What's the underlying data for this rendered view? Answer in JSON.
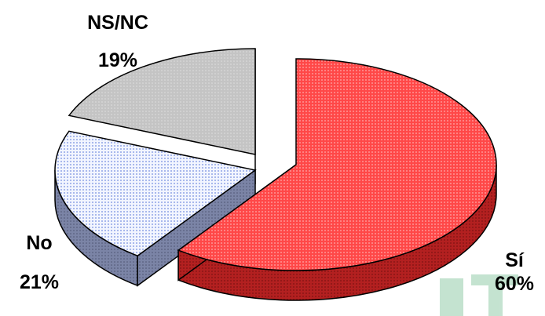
{
  "chart_data": {
    "type": "pie",
    "style": "3d-exploded",
    "categories": [
      "Sí",
      "No",
      "NS/NC"
    ],
    "values": [
      60,
      21,
      19
    ],
    "labels": [
      {
        "category": "Sí",
        "percent": "60%"
      },
      {
        "category": "No",
        "percent": "21%"
      },
      {
        "category": "NS/NC",
        "percent": "19%"
      }
    ],
    "colors": {
      "Sí": {
        "top": "#ff3b3b",
        "side": "#b32020",
        "pattern": "dotted"
      },
      "No": {
        "top": "#e8eefc",
        "side": "#7b84a6",
        "pattern": "dotted"
      },
      "NS/NC": {
        "top": "#c4c4c4",
        "side": "#6e6e6e",
        "pattern": "dotted"
      }
    },
    "legend": "none"
  }
}
